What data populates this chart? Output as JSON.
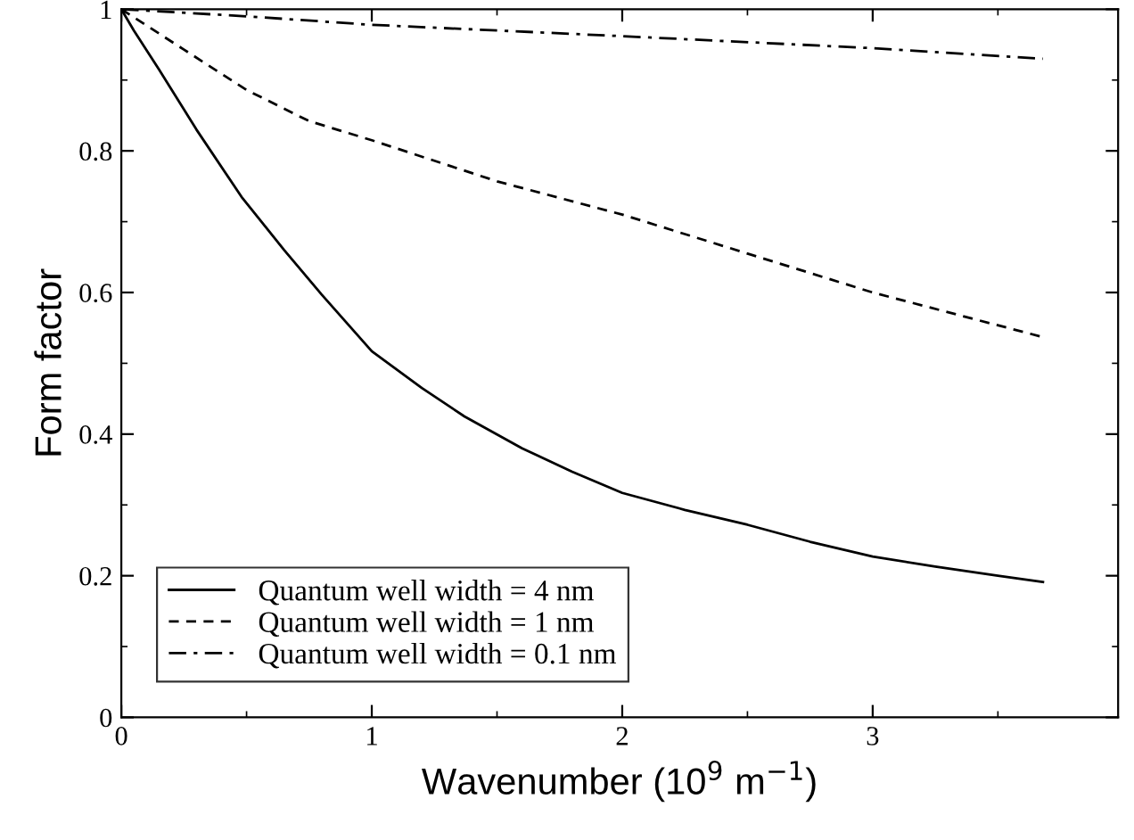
{
  "chart_data": {
    "type": "line",
    "xlabel": "Wavenumber (10$^{9}$ m$^{−1}$)",
    "ylabel": "Form factor",
    "xlim": [
      0,
      3.98
    ],
    "xticks": [
      0,
      1,
      2,
      3
    ],
    "ylim": [
      0,
      1
    ],
    "yticks": [
      0,
      0.2,
      0.4,
      0.6,
      0.8,
      1
    ],
    "grid": false,
    "legend": "bottom left",
    "series": [
      {
        "name": "Quantum well width = 4 nm",
        "color": "#000000",
        "line_style": "solid",
        "x": [
          0,
          0.05,
          0.15,
          0.3,
          0.48,
          0.65,
          0.8,
          1.0,
          1.2,
          1.37,
          1.6,
          1.8,
          2.0,
          2.25,
          2.5,
          2.75,
          3.0,
          3.25,
          3.5,
          3.68
        ],
        "values": [
          1,
          0.97,
          0.915,
          0.83,
          0.735,
          0.66,
          0.597,
          0.517,
          0.465,
          0.425,
          0.38,
          0.347,
          0.317,
          0.293,
          0.272,
          0.248,
          0.227,
          0.213,
          0.2,
          0.191
        ]
      },
      {
        "name": "Quantum well width = 1 nm",
        "color": "#000000",
        "line_style": "dashed",
        "x": [
          0,
          0.25,
          0.5,
          0.75,
          1.0,
          1.5,
          2.0,
          2.5,
          3.0,
          3.68
        ],
        "values": [
          1,
          0.943,
          0.886,
          0.842,
          0.815,
          0.757,
          0.71,
          0.655,
          0.6,
          0.537
        ]
      },
      {
        "name": "Quantum well width = 0.1 nm",
        "color": "#000000",
        "line_style": "dashdot",
        "x": [
          0,
          0.5,
          1.0,
          2.0,
          3.0,
          3.68
        ],
        "values": [
          1,
          0.99,
          0.978,
          0.962,
          0.945,
          0.93
        ]
      }
    ]
  }
}
